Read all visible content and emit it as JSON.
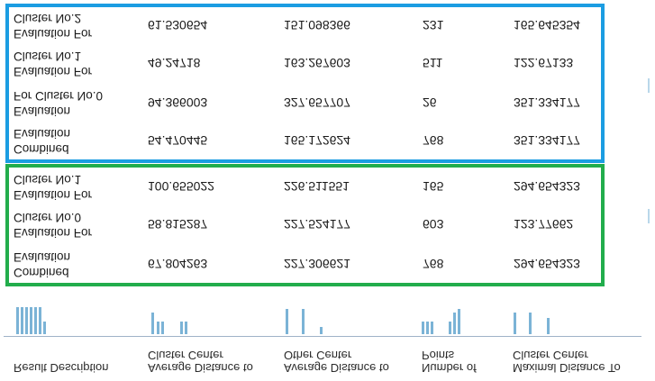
{
  "header": {
    "columns": [
      {
        "line1": "Result Description",
        "line2": ""
      },
      {
        "line1": "Average Distance to",
        "line2": "Cluster Center"
      },
      {
        "line1": "Average Distance to",
        "line2": "Other Center"
      },
      {
        "line1": "Number of",
        "line2": "Points"
      },
      {
        "line1": "Maximal Distance To",
        "line2": "Cluster Center"
      }
    ]
  },
  "colors": {
    "group_a_border": "#22ad4c",
    "group_b_border": "#1b9de2",
    "bar": "#7bb3d6"
  },
  "groups": [
    {
      "name": "green",
      "rows": [
        {
          "desc1": "Combined",
          "desc2": "Evaluation",
          "avg": "67.804263",
          "other": "227.306621",
          "points": "768",
          "max": "294.654323"
        },
        {
          "desc1": "Evaluation For",
          "desc2": "Cluster No.0",
          "avg": "58.815287",
          "other": "227.524177",
          "points": "603",
          "max": "123.77662"
        },
        {
          "desc1": "Evaluation For",
          "desc2": "Cluster No.1",
          "avg": "100.655022",
          "other": "226.511551",
          "points": "165",
          "max": "294.654323"
        }
      ]
    },
    {
      "name": "blue",
      "rows": [
        {
          "desc1": "Combined",
          "desc2": "Evaluation",
          "avg": "54.470445",
          "other": "165.172624",
          "points": "768",
          "max": "351.334177"
        },
        {
          "desc1": "Evaluation",
          "desc2": "For Cluster No.0",
          "avg": "94.366003",
          "other": "327.657707",
          "points": "26",
          "max": "351.334177"
        },
        {
          "desc1": "Evaluation For",
          "desc2": "Cluster No.1",
          "avg": "49.24718",
          "other": "163.267603",
          "points": "511",
          "max": "122.67133"
        },
        {
          "desc1": "Evaluation For",
          "desc2": "Cluster No.2",
          "avg": "61.530654",
          "other": "151.098366",
          "points": "231",
          "max": "165.645354"
        }
      ]
    }
  ]
}
